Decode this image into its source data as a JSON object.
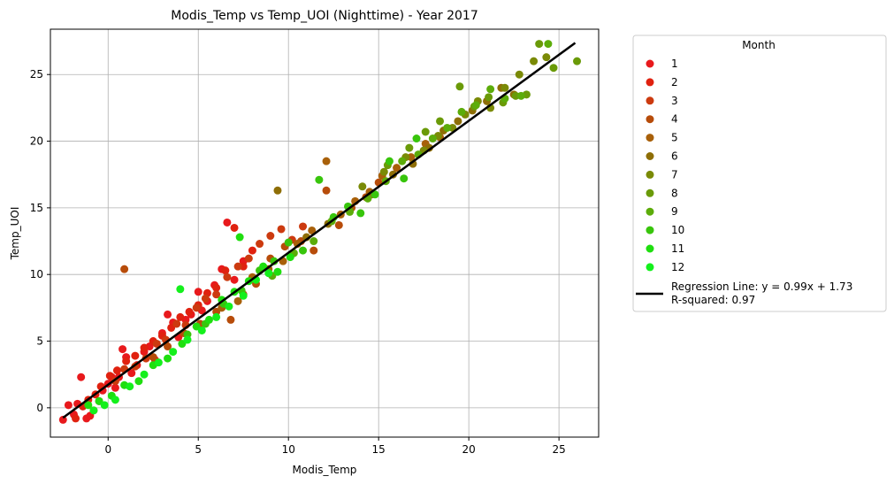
{
  "chart_data": {
    "type": "scatter",
    "title": "Modis_Temp vs Temp_UOI (Nighttime) - Year 2017",
    "xlabel": "Modis_Temp",
    "ylabel": "Temp_UOI",
    "xlim": [
      -3.2,
      27.2
    ],
    "ylim": [
      -2.2,
      28.4
    ],
    "xticks": [
      0,
      5,
      10,
      15,
      20,
      25
    ],
    "yticks": [
      0,
      5,
      10,
      15,
      20,
      25
    ],
    "grid": true,
    "legend": {
      "title": "Month",
      "placement": "outside-right",
      "regression_label": [
        "Regression Line: y = 0.99x + 1.73",
        "R-squared: 0.97"
      ]
    },
    "regression": {
      "slope": 0.99,
      "intercept": 1.73,
      "r_squared": 0.97,
      "x_range": [
        -2.5,
        25.9
      ],
      "color": "#000000"
    },
    "series": [
      {
        "name": "1",
        "color": "#e8191c",
        "points": [
          [
            -2.5,
            -0.9
          ],
          [
            -2.2,
            0.2
          ],
          [
            -1.9,
            -0.5
          ],
          [
            -1.7,
            0.3
          ],
          [
            -1.5,
            2.3
          ],
          [
            -1.2,
            -0.8
          ],
          [
            -1.0,
            -0.6
          ],
          [
            -0.8,
            -0.2
          ],
          [
            -0.5,
            0.5
          ],
          [
            -0.3,
            1.3
          ],
          [
            0.0,
            1.8
          ],
          [
            0.2,
            2.3
          ],
          [
            0.4,
            1.5
          ],
          [
            0.6,
            2.3
          ],
          [
            0.8,
            4.4
          ],
          [
            1.0,
            3.8
          ],
          [
            1.3,
            2.6
          ],
          [
            1.6,
            3.2
          ],
          [
            2.0,
            4.2
          ],
          [
            2.3,
            4.6
          ],
          [
            2.6,
            3.6
          ],
          [
            3.0,
            5.6
          ],
          [
            3.3,
            7.0
          ],
          [
            3.6,
            6.4
          ],
          [
            3.9,
            5.3
          ],
          [
            4.3,
            6.6
          ],
          [
            4.6,
            7.0
          ],
          [
            5.0,
            8.7
          ],
          [
            5.2,
            7.3
          ],
          [
            5.5,
            8.0
          ],
          [
            5.9,
            9.2
          ],
          [
            6.3,
            10.4
          ],
          [
            6.6,
            13.9
          ],
          [
            7.0,
            9.6
          ],
          [
            7.5,
            11.0
          ]
        ]
      },
      {
        "name": "2",
        "color": "#e0210f",
        "points": [
          [
            -1.8,
            -0.8
          ],
          [
            -1.4,
            0.1
          ],
          [
            -1.1,
            0.6
          ],
          [
            -0.7,
            1.0
          ],
          [
            -0.4,
            1.6
          ],
          [
            0.1,
            2.4
          ],
          [
            0.5,
            2.8
          ],
          [
            1.0,
            3.5
          ],
          [
            1.5,
            3.9
          ],
          [
            2.0,
            4.5
          ],
          [
            2.5,
            5.0
          ],
          [
            3.0,
            5.4
          ],
          [
            3.5,
            6.0
          ],
          [
            4.0,
            6.8
          ],
          [
            4.5,
            7.2
          ],
          [
            5.0,
            7.7
          ],
          [
            5.5,
            8.6
          ],
          [
            6.0,
            9.0
          ],
          [
            6.5,
            10.3
          ],
          [
            7.0,
            13.5
          ],
          [
            7.5,
            10.6
          ],
          [
            8.0,
            11.8
          ]
        ]
      },
      {
        "name": "3",
        "color": "#cc3a0f",
        "points": [
          [
            0.4,
            2.0
          ],
          [
            0.9,
            2.9
          ],
          [
            1.5,
            3.1
          ],
          [
            2.1,
            3.7
          ],
          [
            2.7,
            4.8
          ],
          [
            3.2,
            5.1
          ],
          [
            3.8,
            6.3
          ],
          [
            4.3,
            6.2
          ],
          [
            4.9,
            7.5
          ],
          [
            5.4,
            8.2
          ],
          [
            6.0,
            8.5
          ],
          [
            6.6,
            9.8
          ],
          [
            7.2,
            10.6
          ],
          [
            7.8,
            11.2
          ],
          [
            8.4,
            12.3
          ],
          [
            9.0,
            12.9
          ],
          [
            9.6,
            13.4
          ],
          [
            10.2,
            12.6
          ],
          [
            10.8,
            13.6
          ]
        ]
      },
      {
        "name": "4",
        "color": "#b74c0a",
        "points": [
          [
            0.9,
            10.4
          ],
          [
            2.5,
            3.8
          ],
          [
            3.3,
            4.6
          ],
          [
            4.2,
            5.6
          ],
          [
            5.1,
            6.3
          ],
          [
            6.0,
            7.2
          ],
          [
            6.8,
            6.6
          ],
          [
            7.5,
            8.5
          ],
          [
            8.2,
            9.3
          ],
          [
            9.0,
            11.2
          ],
          [
            9.8,
            12.1
          ],
          [
            10.7,
            12.5
          ],
          [
            11.4,
            11.8
          ],
          [
            12.1,
            16.3
          ],
          [
            12.8,
            13.7
          ],
          [
            13.5,
            15.0
          ],
          [
            14.3,
            15.8
          ],
          [
            15.0,
            16.9
          ]
        ]
      },
      {
        "name": "5",
        "color": "#a8600a",
        "points": [
          [
            6.3,
            7.5
          ],
          [
            7.2,
            8.0
          ],
          [
            8.0,
            9.8
          ],
          [
            8.9,
            10.4
          ],
          [
            9.7,
            11.0
          ],
          [
            10.5,
            12.3
          ],
          [
            11.3,
            13.3
          ],
          [
            12.1,
            18.5
          ],
          [
            12.9,
            14.5
          ],
          [
            13.7,
            15.5
          ],
          [
            14.5,
            16.2
          ],
          [
            15.2,
            17.4
          ],
          [
            16.0,
            18.0
          ],
          [
            16.8,
            18.8
          ],
          [
            17.6,
            19.8
          ],
          [
            18.4,
            20.3
          ]
        ]
      },
      {
        "name": "6",
        "color": "#8e6e06",
        "points": [
          [
            9.4,
            16.3
          ],
          [
            11.0,
            12.8
          ],
          [
            12.2,
            13.8
          ],
          [
            13.4,
            14.9
          ],
          [
            14.6,
            16.0
          ],
          [
            15.8,
            17.5
          ],
          [
            16.9,
            18.3
          ],
          [
            17.8,
            19.5
          ],
          [
            18.6,
            20.8
          ],
          [
            19.4,
            21.5
          ],
          [
            20.2,
            22.3
          ],
          [
            21.0,
            23.0
          ],
          [
            21.8,
            24.0
          ],
          [
            22.5,
            23.5
          ]
        ]
      },
      {
        "name": "7",
        "color": "#7a8a06",
        "points": [
          [
            14.1,
            16.6
          ],
          [
            15.3,
            17.7
          ],
          [
            16.5,
            18.8
          ],
          [
            17.5,
            19.3
          ],
          [
            18.3,
            20.4
          ],
          [
            19.1,
            21.0
          ],
          [
            19.8,
            22.0
          ],
          [
            20.5,
            23.0
          ],
          [
            21.2,
            22.5
          ],
          [
            22.0,
            24.0
          ],
          [
            22.8,
            25.0
          ],
          [
            23.6,
            26.0
          ],
          [
            24.3,
            26.3
          ]
        ]
      },
      {
        "name": "8",
        "color": "#6a9a08",
        "points": [
          [
            15.5,
            18.2
          ],
          [
            16.7,
            19.5
          ],
          [
            17.6,
            20.7
          ],
          [
            18.4,
            21.5
          ],
          [
            19.5,
            24.1
          ],
          [
            20.3,
            22.6
          ],
          [
            21.1,
            23.3
          ],
          [
            21.9,
            22.9
          ],
          [
            22.6,
            23.4
          ],
          [
            23.2,
            23.5
          ],
          [
            23.9,
            27.3
          ],
          [
            24.7,
            25.5
          ],
          [
            26.0,
            26.0
          ]
        ]
      },
      {
        "name": "9",
        "color": "#5cac0a",
        "points": [
          [
            9.1,
            9.9
          ],
          [
            10.3,
            11.6
          ],
          [
            11.4,
            12.5
          ],
          [
            12.4,
            14.0
          ],
          [
            13.4,
            14.7
          ],
          [
            14.4,
            15.7
          ],
          [
            15.4,
            17.0
          ],
          [
            16.3,
            18.5
          ],
          [
            17.2,
            19.0
          ],
          [
            18.0,
            20.2
          ],
          [
            18.8,
            21.0
          ],
          [
            19.6,
            22.2
          ],
          [
            20.4,
            22.7
          ],
          [
            21.2,
            23.9
          ],
          [
            22.0,
            23.2
          ],
          [
            22.9,
            23.4
          ],
          [
            24.4,
            27.3
          ]
        ]
      },
      {
        "name": "10",
        "color": "#38c50c",
        "points": [
          [
            4.4,
            5.5
          ],
          [
            5.4,
            6.3
          ],
          [
            6.4,
            7.8
          ],
          [
            7.4,
            8.8
          ],
          [
            8.4,
            10.3
          ],
          [
            9.2,
            11.0
          ],
          [
            10.0,
            12.4
          ],
          [
            10.8,
            11.8
          ],
          [
            11.7,
            17.1
          ],
          [
            12.5,
            14.3
          ],
          [
            13.3,
            15.1
          ],
          [
            14.0,
            14.6
          ],
          [
            14.8,
            16.0
          ],
          [
            15.6,
            18.5
          ],
          [
            16.4,
            17.2
          ],
          [
            17.1,
            20.2
          ]
        ]
      },
      {
        "name": "11",
        "color": "#1fde0f",
        "points": [
          [
            -1.1,
            0.2
          ],
          [
            -0.5,
            0.5
          ],
          [
            0.2,
            0.9
          ],
          [
            0.9,
            1.7
          ],
          [
            1.7,
            2.0
          ],
          [
            2.5,
            3.2
          ],
          [
            3.3,
            3.7
          ],
          [
            4.1,
            4.8
          ],
          [
            4.9,
            6.1
          ],
          [
            5.6,
            6.6
          ],
          [
            6.3,
            8.1
          ],
          [
            7.0,
            8.7
          ],
          [
            7.3,
            12.8
          ],
          [
            7.8,
            9.5
          ],
          [
            8.6,
            10.6
          ],
          [
            9.4,
            10.2
          ],
          [
            10.1,
            11.3
          ]
        ]
      },
      {
        "name": "12",
        "color": "#14f01c",
        "points": [
          [
            -0.8,
            -0.2
          ],
          [
            -0.2,
            0.2
          ],
          [
            0.4,
            0.6
          ],
          [
            1.2,
            1.6
          ],
          [
            2.0,
            2.5
          ],
          [
            2.8,
            3.4
          ],
          [
            3.6,
            4.2
          ],
          [
            4.0,
            8.9
          ],
          [
            4.4,
            5.1
          ],
          [
            5.2,
            5.8
          ],
          [
            6.0,
            6.8
          ],
          [
            6.7,
            7.6
          ],
          [
            7.5,
            8.4
          ],
          [
            8.2,
            9.6
          ],
          [
            8.9,
            10.1
          ]
        ]
      }
    ]
  }
}
